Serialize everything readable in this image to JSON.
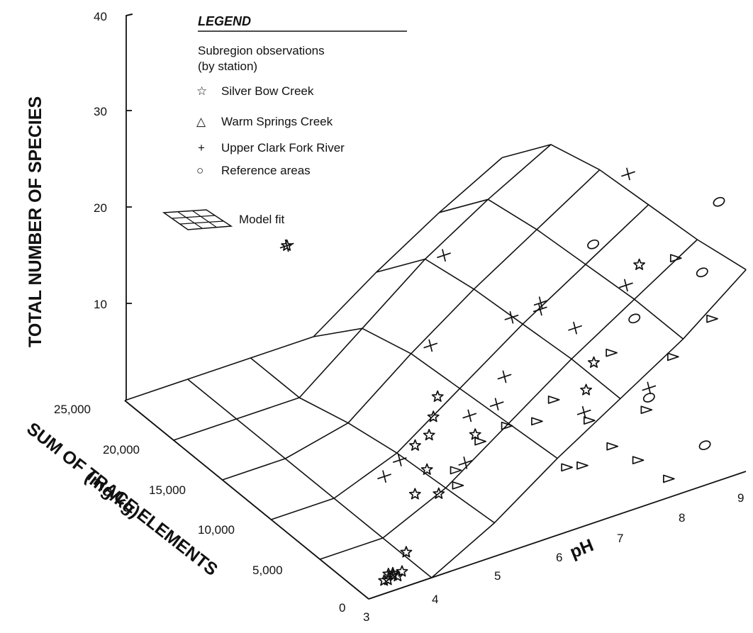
{
  "chart_data": {
    "type": "3d-surface-scatter",
    "title": "",
    "zlabel": "TOTAL NUMBER OF SPECIES",
    "ylabel_line1": "SUM OF TRACE ELEMENTS",
    "ylabel_line2": "(mg/kg)",
    "xlabel": "pH",
    "z_ticks": [
      "40",
      "30",
      "20",
      "10"
    ],
    "z_tick_values": [
      40,
      30,
      20,
      10
    ],
    "y_ticks": [
      "25,000",
      "20,000",
      "15,000",
      "10,000",
      "5,000",
      "0"
    ],
    "y_tick_values": [
      25000,
      20000,
      15000,
      10000,
      5000,
      0
    ],
    "x_ticks": [
      "3",
      "4",
      "5",
      "6",
      "7",
      "8",
      "9"
    ],
    "x_tick_values": [
      3,
      4,
      5,
      6,
      7,
      8,
      9
    ],
    "zlim": [
      0,
      40
    ],
    "ylim": [
      0,
      25000
    ],
    "xlim": [
      3,
      9
    ],
    "legend": {
      "title": "LEGEND",
      "subtitle_line1": "Subregion observations",
      "subtitle_line2": "(by station)",
      "entries": [
        {
          "symbol": "☆",
          "label": "Silver Bow Creek"
        },
        {
          "symbol": "△",
          "label": "Warm Springs Creek"
        },
        {
          "symbol": "+",
          "label": "Upper Clark Fork River"
        },
        {
          "symbol": "○",
          "label": "Reference areas"
        }
      ],
      "model_fit_label": "Model fit"
    },
    "surface": {
      "ph_grid": [
        3,
        4,
        5,
        6,
        7,
        8,
        9
      ],
      "trace_grid": [
        0,
        5000,
        10000,
        15000,
        20000,
        25000
      ],
      "species_by_trace_row": [
        [
          0,
          0,
          3.5,
          8,
          12,
          16,
          21
        ],
        [
          0,
          0,
          3,
          7.5,
          12,
          16,
          20
        ],
        [
          0,
          0,
          2.5,
          7,
          11.5,
          15.5,
          19.5
        ],
        [
          0,
          0,
          1.5,
          6.5,
          11,
          15,
          19
        ],
        [
          0,
          0,
          0,
          5,
          10,
          14,
          17.5
        ],
        [
          0,
          0,
          0,
          0,
          4.5,
          8.5,
          12
        ]
      ]
    },
    "series": [
      {
        "name": "Silver Bow Creek",
        "marker": "star",
        "points": [
          {
            "ph": 3.4,
            "trace": 1000,
            "species": 0.2
          },
          {
            "ph": 3.5,
            "trace": 1200,
            "species": 0.5
          },
          {
            "ph": 3.6,
            "trace": 900,
            "species": 0.3
          },
          {
            "ph": 3.5,
            "trace": 700,
            "species": 0.8
          },
          {
            "ph": 3.7,
            "trace": 1100,
            "species": 0.4
          },
          {
            "ph": 3.4,
            "trace": 600,
            "species": 0.6
          },
          {
            "ph": 3.6,
            "trace": 1400,
            "species": 0.2
          },
          {
            "ph": 4.0,
            "trace": 2600,
            "species": 0.5
          },
          {
            "ph": 4.9,
            "trace": 7500,
            "species": 0.5
          },
          {
            "ph": 5.2,
            "trace": 7000,
            "species": 0.3
          },
          {
            "ph": 5.4,
            "trace": 9500,
            "species": 0.3
          },
          {
            "ph": 5.6,
            "trace": 12000,
            "species": 0.3
          },
          {
            "ph": 5.9,
            "trace": 12500,
            "species": 0.3
          },
          {
            "ph": 6.2,
            "trace": 14000,
            "species": 0.3
          },
          {
            "ph": 6.5,
            "trace": 15500,
            "species": 0.5
          },
          {
            "ph": 6.4,
            "trace": 11000,
            "species": 0.5
          },
          {
            "ph": 8.0,
            "trace": 4500,
            "species": 20
          },
          {
            "ph": 7.2,
            "trace": 4000,
            "species": 12
          },
          {
            "ph": 7.0,
            "trace": 3500,
            "species": 10
          },
          {
            "ph": 5.5,
            "trace": 24500,
            "species": 11
          }
        ]
      },
      {
        "name": "Warm Springs Creek",
        "marker": "triangle",
        "points": [
          {
            "ph": 5.5,
            "trace": 7000,
            "species": 0.5
          },
          {
            "ph": 5.7,
            "trace": 8500,
            "species": 0.4
          },
          {
            "ph": 6.4,
            "trace": 10500,
            "species": 0.2
          },
          {
            "ph": 6.9,
            "trace": 11000,
            "species": 0.3
          },
          {
            "ph": 7.3,
            "trace": 10500,
            "species": 0.3
          },
          {
            "ph": 7.8,
            "trace": 12000,
            "species": 0.2
          },
          {
            "ph": 7.8,
            "trace": 6000,
            "species": 0.3
          },
          {
            "ph": 7.0,
            "trace": 5500,
            "species": 0.3
          },
          {
            "ph": 7.2,
            "trace": 5200,
            "species": 0.3
          },
          {
            "ph": 7.9,
            "trace": 9000,
            "species": 0.3
          },
          {
            "ph": 7.9,
            "trace": 4000,
            "species": 0.3
          },
          {
            "ph": 8.0,
            "trace": 1500,
            "species": 0.2
          },
          {
            "ph": 7.4,
            "trace": 3500,
            "species": 13
          },
          {
            "ph": 8.5,
            "trace": 4000,
            "species": 20
          },
          {
            "ph": 8.3,
            "trace": 3000,
            "species": 11
          },
          {
            "ph": 9.0,
            "trace": 3500,
            "species": 13
          },
          {
            "ph": 7.8,
            "trace": 2500,
            "species": 7
          }
        ]
      },
      {
        "name": "Upper Clark Fork River",
        "marker": "plus",
        "points": [
          {
            "ph": 4.8,
            "trace": 10000,
            "species": 0.5
          },
          {
            "ph": 5.2,
            "trace": 11000,
            "species": 0.5
          },
          {
            "ph": 5.7,
            "trace": 7500,
            "species": 2
          },
          {
            "ph": 6.0,
            "trace": 9000,
            "species": 5
          },
          {
            "ph": 6.2,
            "trace": 7500,
            "species": 7
          },
          {
            "ph": 6.4,
            "trace": 8000,
            "species": 9
          },
          {
            "ph": 6.0,
            "trace": 13000,
            "species": 9
          },
          {
            "ph": 6.9,
            "trace": 10500,
            "species": 12
          },
          {
            "ph": 7.2,
            "trace": 9500,
            "species": 13
          },
          {
            "ph": 7.6,
            "trace": 8500,
            "species": 11
          },
          {
            "ph": 7.2,
            "trace": 5000,
            "species": 6
          },
          {
            "ph": 6.9,
            "trace": 7500,
            "species": 16
          },
          {
            "ph": 8.6,
            "trace": 9500,
            "species": 24
          },
          {
            "ph": 8.1,
            "trace": 6500,
            "species": 16
          },
          {
            "ph": 8.0,
            "trace": 3500,
            "species": 8
          },
          {
            "ph": 6.6,
            "trace": 15500,
            "species": 15
          },
          {
            "ph": 5.5,
            "trace": 24500,
            "species": 11
          }
        ]
      },
      {
        "name": "Reference areas",
        "marker": "circle",
        "points": [
          {
            "ph": 7.5,
            "trace": 6000,
            "species": 22
          },
          {
            "ph": 8.0,
            "trace": 5000,
            "species": 14
          },
          {
            "ph": 8.5,
            "trace": 1000,
            "species": 3
          },
          {
            "ph": 8.0,
            "trace": 3500,
            "species": 7
          },
          {
            "ph": 9.0,
            "trace": 4500,
            "species": 17
          },
          {
            "ph": 9.5,
            "trace": 6000,
            "species": 22
          }
        ]
      }
    ]
  }
}
